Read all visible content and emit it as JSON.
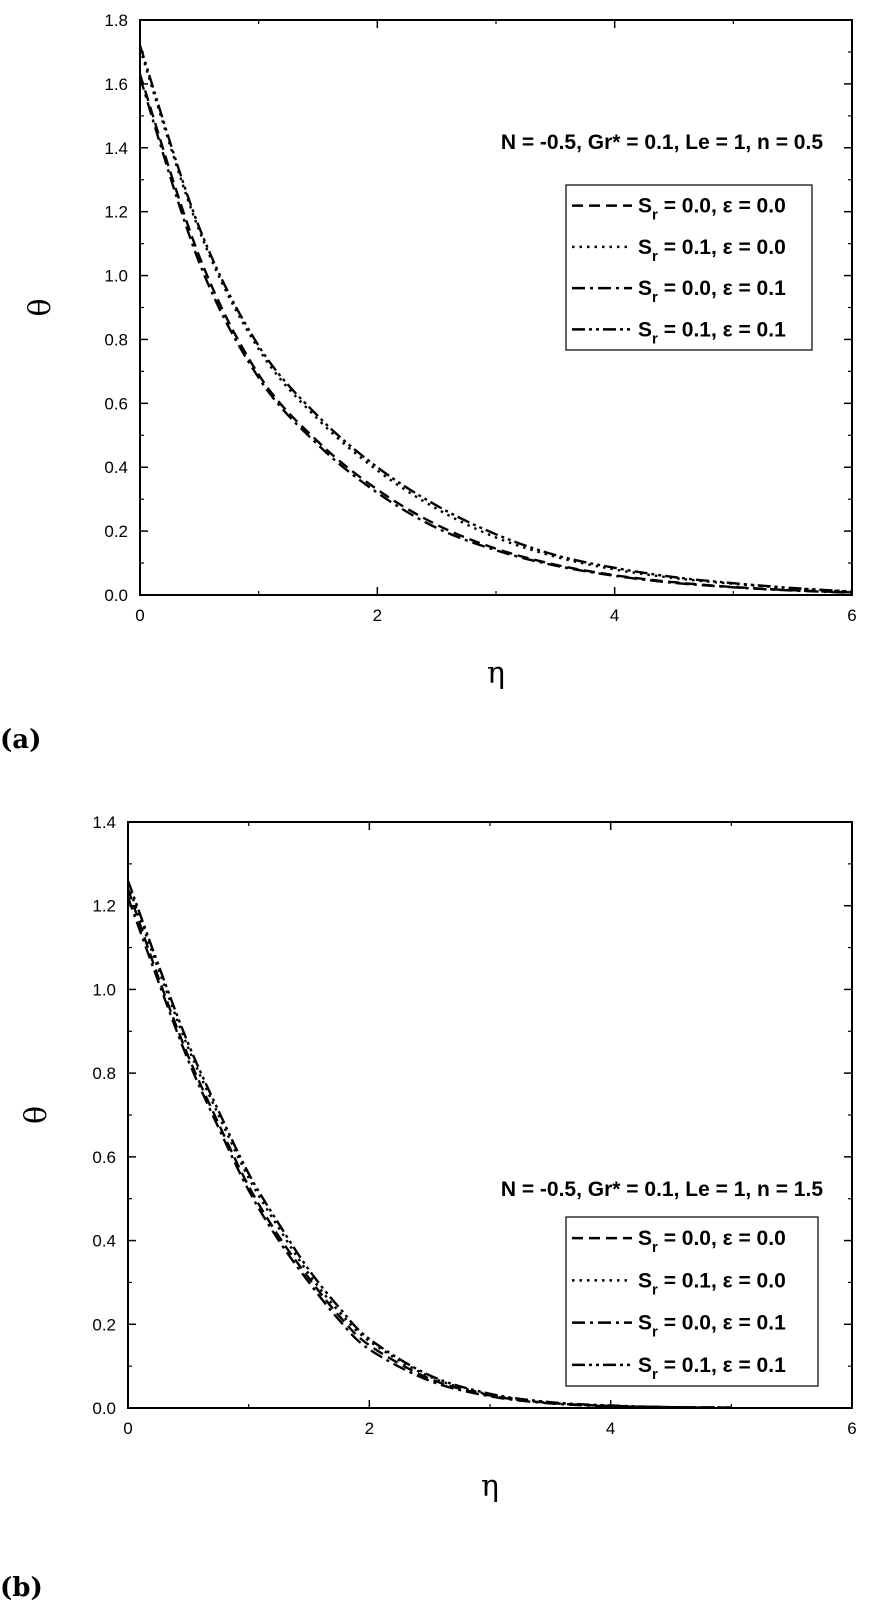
{
  "chart_data": [
    {
      "type": "line",
      "panel_label": "(a)",
      "annotation": "N = -0.5, Gr* = 0.1, Le = 1, n = 0.5",
      "xlabel": "η",
      "ylabel": "θ",
      "xlim": [
        0,
        6
      ],
      "ylim": [
        0,
        1.8
      ],
      "xticks": [
        "0",
        "2",
        "4",
        "6"
      ],
      "yticks": [
        "0.0",
        "0.2",
        "0.4",
        "0.6",
        "0.8",
        "1.0",
        "1.2",
        "1.4",
        "1.6",
        "1.8"
      ],
      "grid": false,
      "legend_position": "right",
      "series": [
        {
          "name": "Sr = 0.0, ε = 0.0",
          "label": {
            "pre": "S",
            "sub": "r",
            "post": " = 0.0, ε = 0.0"
          },
          "style": "dash",
          "x": [
            0,
            0.5,
            1,
            1.5,
            2,
            2.5,
            3,
            3.5,
            4,
            4.5,
            5,
            5.5,
            6
          ],
          "y": [
            1.63,
            1.06,
            0.69,
            0.48,
            0.33,
            0.22,
            0.145,
            0.095,
            0.062,
            0.04,
            0.025,
            0.015,
            0.008
          ]
        },
        {
          "name": "Sr = 0.1, ε = 0.0",
          "label": {
            "pre": "S",
            "sub": "r",
            "post": " = 0.1, ε = 0.0"
          },
          "style": "dot",
          "x": [
            0,
            0.5,
            1,
            1.5,
            2,
            2.5,
            3,
            3.5,
            4,
            4.5,
            5,
            5.5,
            6
          ],
          "y": [
            1.71,
            1.14,
            0.77,
            0.55,
            0.39,
            0.27,
            0.18,
            0.12,
            0.08,
            0.053,
            0.035,
            0.021,
            0.01
          ]
        },
        {
          "name": "Sr = 0.0, ε = 0.1",
          "label": {
            "pre": "S",
            "sub": "r",
            "post": " = 0.0, ε = 0.1"
          },
          "style": "dashdot",
          "x": [
            0,
            0.5,
            1,
            1.5,
            2,
            2.5,
            3,
            3.5,
            4,
            4.5,
            5,
            5.5,
            6
          ],
          "y": [
            1.62,
            1.04,
            0.68,
            0.47,
            0.32,
            0.21,
            0.14,
            0.092,
            0.06,
            0.038,
            0.024,
            0.014,
            0.007
          ]
        },
        {
          "name": "Sr = 0.1, ε = 0.1",
          "label": {
            "pre": "S",
            "sub": "r",
            "post": " = 0.1, ε = 0.1"
          },
          "style": "dashdotdot",
          "x": [
            0,
            0.5,
            1,
            1.5,
            2,
            2.5,
            3,
            3.5,
            4,
            4.5,
            5,
            5.5,
            6
          ],
          "y": [
            1.72,
            1.15,
            0.78,
            0.56,
            0.4,
            0.28,
            0.19,
            0.125,
            0.085,
            0.056,
            0.037,
            0.022,
            0.011
          ]
        }
      ]
    },
    {
      "type": "line",
      "panel_label": "(b)",
      "annotation": "N = -0.5, Gr* = 0.1, Le = 1, n = 1.5",
      "xlabel": "η",
      "ylabel": "θ",
      "xlim": [
        0,
        6
      ],
      "ylim": [
        0,
        1.4
      ],
      "xticks": [
        "0",
        "2",
        "4",
        "6"
      ],
      "yticks": [
        "0.0",
        "0.2",
        "0.4",
        "0.6",
        "0.8",
        "1.0",
        "1.2",
        "1.4"
      ],
      "grid": false,
      "legend_position": "bottom-right",
      "series": [
        {
          "name": "Sr = 0.0, ε = 0.0",
          "label": {
            "pre": "S",
            "sub": "r",
            "post": " = 0.0, ε = 0.0"
          },
          "style": "dash",
          "x": [
            0,
            0.25,
            0.5,
            0.75,
            1,
            1.25,
            1.5,
            1.75,
            2,
            2.5,
            3,
            3.5,
            4,
            4.5,
            5
          ],
          "y": [
            1.24,
            1.03,
            0.84,
            0.68,
            0.53,
            0.41,
            0.31,
            0.22,
            0.15,
            0.07,
            0.03,
            0.012,
            0.005,
            0.002,
            0.001
          ]
        },
        {
          "name": "Sr = 0.1, ε = 0.0",
          "label": {
            "pre": "S",
            "sub": "r",
            "post": " = 0.1, ε = 0.0"
          },
          "style": "dot",
          "x": [
            0,
            0.25,
            0.5,
            0.75,
            1,
            1.25,
            1.5,
            1.75,
            2,
            2.5,
            3,
            3.5,
            4,
            4.5,
            5
          ],
          "y": [
            1.25,
            1.05,
            0.86,
            0.7,
            0.55,
            0.43,
            0.32,
            0.23,
            0.16,
            0.075,
            0.032,
            0.013,
            0.005,
            0.002,
            0.001
          ]
        },
        {
          "name": "Sr = 0.0, ε = 0.1",
          "label": {
            "pre": "S",
            "sub": "r",
            "post": " = 0.0, ε = 0.1"
          },
          "style": "dashdot",
          "x": [
            0,
            0.25,
            0.5,
            0.75,
            1,
            1.25,
            1.5,
            1.75,
            2,
            2.5,
            3,
            3.5,
            4,
            4.5,
            5
          ],
          "y": [
            1.22,
            1.02,
            0.83,
            0.67,
            0.52,
            0.4,
            0.3,
            0.21,
            0.14,
            0.065,
            0.028,
            0.011,
            0.004,
            0.002,
            0.001
          ]
        },
        {
          "name": "Sr = 0.1, ε = 0.1",
          "label": {
            "pre": "S",
            "sub": "r",
            "post": " = 0.1, ε = 0.1"
          },
          "style": "dashdotdot",
          "x": [
            0,
            0.25,
            0.5,
            0.75,
            1,
            1.25,
            1.5,
            1.75,
            2,
            2.5,
            3,
            3.5,
            4,
            4.5,
            5
          ],
          "y": [
            1.26,
            1.06,
            0.87,
            0.71,
            0.56,
            0.44,
            0.33,
            0.24,
            0.165,
            0.078,
            0.034,
            0.014,
            0.006,
            0.002,
            0.001
          ]
        }
      ]
    }
  ]
}
